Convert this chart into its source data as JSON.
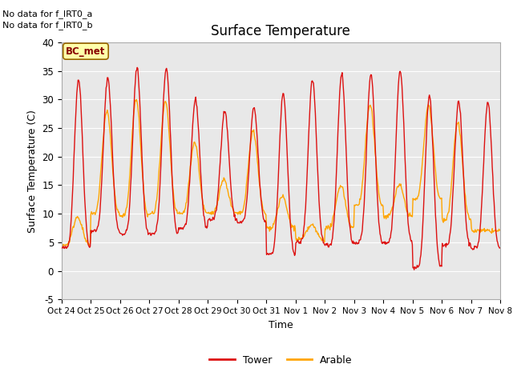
{
  "title": "Surface Temperature",
  "xlabel": "Time",
  "ylabel": "Surface Temperature (C)",
  "ylim": [
    -5,
    40
  ],
  "yticks": [
    -5,
    0,
    5,
    10,
    15,
    20,
    25,
    30,
    35,
    40
  ],
  "background_color": "#e8e8e8",
  "fig_color": "#ffffff",
  "tower_color": "#dd1111",
  "arable_color": "#ffa500",
  "no_data_text1": "No data for f_IRT0_a",
  "no_data_text2": "No data for f_IRT0_b",
  "legend_box_label": "BC_met",
  "legend_box_facecolor": "#ffffaa",
  "legend_box_edgecolor": "#996600",
  "legend_box_textcolor": "#880000",
  "x_tick_labels": [
    "Oct 24",
    "Oct 25",
    "Oct 26",
    "Oct 27",
    "Oct 28",
    "Oct 29",
    "Oct 30",
    "Oct 31",
    "Nov 1",
    "Nov 2",
    "Nov 3",
    "Nov 4",
    "Nov 5",
    "Nov 6",
    "Nov 7",
    "Nov 8"
  ],
  "n_days": 15,
  "points_per_day": 48,
  "tower_daily_max": [
    33.5,
    33.8,
    35.5,
    35.5,
    30.0,
    28.0,
    28.5,
    31.0,
    33.5,
    34.5,
    34.5,
    35.0,
    30.5,
    29.5,
    29.5
  ],
  "tower_daily_min": [
    4.0,
    7.0,
    6.5,
    6.5,
    7.5,
    9.0,
    8.5,
    3.0,
    5.0,
    4.5,
    5.0,
    5.0,
    0.5,
    4.5,
    4.0
  ],
  "arable_daily_max": [
    9.5,
    28.0,
    30.0,
    29.5,
    22.5,
    16.0,
    24.5,
    13.0,
    8.0,
    15.0,
    29.0,
    15.0,
    29.0,
    26.0,
    7.0
  ],
  "arable_daily_min": [
    4.5,
    10.0,
    9.5,
    10.0,
    10.0,
    10.0,
    10.0,
    7.5,
    5.5,
    7.5,
    11.5,
    9.5,
    12.5,
    9.0,
    7.0
  ]
}
